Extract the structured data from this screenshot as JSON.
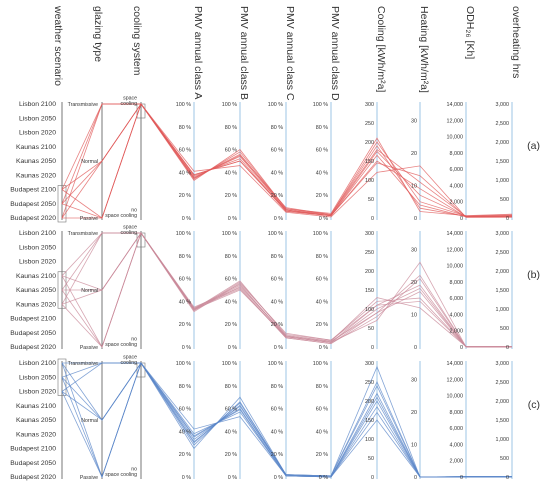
{
  "chart_data": {
    "type": "parallel_coordinates",
    "axes": [
      {
        "key": "weather",
        "label": "weather scenario",
        "kind": "categorical",
        "categories": [
          "Lisbon 2100",
          "Lisbon 2050",
          "Lisbon 2020",
          "Kaunas 2100",
          "Kaunas 2050",
          "Kaunas 2020",
          "Budapest 2100",
          "Budapest 2050",
          "Budapest 2020"
        ]
      },
      {
        "key": "glazing",
        "label": "glazing type",
        "kind": "categorical",
        "categories": [
          "Transmissive",
          "Normal",
          "Passive"
        ]
      },
      {
        "key": "cooling",
        "label": "cooling system",
        "kind": "categorical",
        "categories": [
          "space\ncooling",
          "no\nspace cooling"
        ]
      },
      {
        "key": "pmvA",
        "label": "PMV annual class A",
        "kind": "numeric",
        "min": 0,
        "max": 100,
        "unit": "%",
        "ticks": [
          "0 %",
          "20 %",
          "40 %",
          "60 %",
          "80 %",
          "100 %"
        ]
      },
      {
        "key": "pmvB",
        "label": "PMV annual class B",
        "kind": "numeric",
        "min": 0,
        "max": 100,
        "unit": "%",
        "ticks": [
          "0 %",
          "20 %",
          "40 %",
          "60 %",
          "80 %",
          "100 %"
        ]
      },
      {
        "key": "pmvC",
        "label": "PMV annual class C",
        "kind": "numeric",
        "min": 0,
        "max": 100,
        "unit": "%",
        "ticks": [
          "0 %",
          "20 %",
          "40 %",
          "60 %",
          "80 %",
          "100 %"
        ]
      },
      {
        "key": "pmvD",
        "label": "PMV annual class D",
        "kind": "numeric",
        "min": 0,
        "max": 100,
        "unit": "%",
        "ticks": [
          "0 %",
          "20 %",
          "40 %",
          "60 %",
          "80 %",
          "100 %"
        ]
      },
      {
        "key": "cool",
        "label": "Cooling [kWh/m²a]",
        "kind": "numeric",
        "min": 0,
        "max": 300,
        "ticks": [
          "0",
          "50",
          "100",
          "150",
          "200",
          "250",
          "300"
        ]
      },
      {
        "key": "heat",
        "label": "Heating [kWh/m²a]",
        "kind": "numeric",
        "min": 0,
        "max": 35,
        "ticks": [
          "0",
          "10",
          "20",
          "30"
        ]
      },
      {
        "key": "odh",
        "label": "ODH₂₆ [Kh]",
        "kind": "numeric",
        "min": 0,
        "max": 14000,
        "ticks": [
          "0",
          "2,000",
          "4,000",
          "6,000",
          "8,000",
          "10,000",
          "12,000",
          "14,000"
        ]
      },
      {
        "key": "ovh",
        "label": "overheating hrs",
        "kind": "numeric",
        "min": 0,
        "max": 3000,
        "ticks": [
          "0",
          "500",
          "1,000",
          "1,500",
          "2,000",
          "2,500",
          "3,000"
        ]
      }
    ],
    "panels": [
      {
        "label": "(a)",
        "color": "#e05a5a",
        "selected_weather": [
          "Budapest 2100",
          "Budapest 2050",
          "Budapest 2020"
        ],
        "selected_cooling": "space\ncooling",
        "series": [
          {
            "weather": "Budapest 2100",
            "glazing": "Transmissive",
            "cooling": "space\ncooling",
            "pmvA": 33,
            "pmvB": 60,
            "pmvC": 8,
            "pmvD": 4,
            "cool": 210,
            "heat": 2,
            "odh": 300,
            "ovh": 100
          },
          {
            "weather": "Budapest 2100",
            "glazing": "Normal",
            "cooling": "space\ncooling",
            "pmvA": 35,
            "pmvB": 56,
            "pmvC": 7,
            "pmvD": 3,
            "cool": 190,
            "heat": 3,
            "odh": 200,
            "ovh": 60
          },
          {
            "weather": "Budapest 2100",
            "glazing": "Passive",
            "cooling": "space\ncooling",
            "pmvA": 37,
            "pmvB": 52,
            "pmvC": 6,
            "pmvD": 2,
            "cool": 165,
            "heat": 4,
            "odh": 150,
            "ovh": 40
          },
          {
            "weather": "Budapest 2050",
            "glazing": "Transmissive",
            "cooling": "space\ncooling",
            "pmvA": 34,
            "pmvB": 58,
            "pmvC": 8,
            "pmvD": 3,
            "cool": 200,
            "heat": 5,
            "odh": 250,
            "ovh": 80
          },
          {
            "weather": "Budapest 2050",
            "glazing": "Normal",
            "cooling": "space\ncooling",
            "pmvA": 36,
            "pmvB": 54,
            "pmvC": 7,
            "pmvD": 2,
            "cool": 175,
            "heat": 7,
            "odh": 180,
            "ovh": 50
          },
          {
            "weather": "Budapest 2050",
            "glazing": "Passive",
            "cooling": "space\ncooling",
            "pmvA": 38,
            "pmvB": 50,
            "pmvC": 6,
            "pmvD": 2,
            "cool": 150,
            "heat": 9,
            "odh": 120,
            "ovh": 30
          },
          {
            "weather": "Budapest 2020",
            "glazing": "Transmissive",
            "cooling": "space\ncooling",
            "pmvA": 35,
            "pmvB": 55,
            "pmvC": 9,
            "pmvD": 3,
            "cool": 180,
            "heat": 11,
            "odh": 200,
            "ovh": 60
          },
          {
            "weather": "Budapest 2020",
            "glazing": "Normal",
            "cooling": "space\ncooling",
            "pmvA": 38,
            "pmvB": 50,
            "pmvC": 7,
            "pmvD": 2,
            "cool": 145,
            "heat": 13,
            "odh": 120,
            "ovh": 30
          },
          {
            "weather": "Budapest 2020",
            "glazing": "Passive",
            "cooling": "space\ncooling",
            "pmvA": 41,
            "pmvB": 46,
            "pmvC": 5,
            "pmvD": 1,
            "cool": 120,
            "heat": 16,
            "odh": 80,
            "ovh": 20
          }
        ]
      },
      {
        "label": "(b)",
        "color": "#c98a9a",
        "selected_weather": [
          "Kaunas 2100",
          "Kaunas 2050",
          "Kaunas 2020"
        ],
        "selected_cooling": "space\ncooling",
        "series": [
          {
            "weather": "Kaunas 2100",
            "glazing": "Transmissive",
            "cooling": "space\ncooling",
            "pmvA": 33,
            "pmvB": 58,
            "pmvC": 10,
            "pmvD": 5,
            "cool": 130,
            "heat": 12,
            "odh": 50,
            "ovh": 10
          },
          {
            "weather": "Kaunas 2100",
            "glazing": "Normal",
            "cooling": "space\ncooling",
            "pmvA": 34,
            "pmvB": 55,
            "pmvC": 9,
            "pmvD": 4,
            "cool": 110,
            "heat": 14,
            "odh": 40,
            "ovh": 8
          },
          {
            "weather": "Kaunas 2100",
            "glazing": "Passive",
            "cooling": "space\ncooling",
            "pmvA": 35,
            "pmvB": 52,
            "pmvC": 8,
            "pmvD": 3,
            "cool": 90,
            "heat": 17,
            "odh": 30,
            "ovh": 5
          },
          {
            "weather": "Kaunas 2050",
            "glazing": "Transmissive",
            "cooling": "space\ncooling",
            "pmvA": 32,
            "pmvB": 57,
            "pmvC": 11,
            "pmvD": 6,
            "cool": 120,
            "heat": 15,
            "odh": 40,
            "ovh": 8
          },
          {
            "weather": "Kaunas 2050",
            "glazing": "Normal",
            "cooling": "space\ncooling",
            "pmvA": 33,
            "pmvB": 54,
            "pmvC": 9,
            "pmvD": 4,
            "cool": 100,
            "heat": 18,
            "odh": 30,
            "ovh": 6
          },
          {
            "weather": "Kaunas 2050",
            "glazing": "Passive",
            "cooling": "space\ncooling",
            "pmvA": 34,
            "pmvB": 51,
            "pmvC": 8,
            "pmvD": 3,
            "cool": 80,
            "heat": 21,
            "odh": 20,
            "ovh": 4
          },
          {
            "weather": "Kaunas 2020",
            "glazing": "Transmissive",
            "cooling": "space\ncooling",
            "pmvA": 31,
            "pmvB": 56,
            "pmvC": 12,
            "pmvD": 6,
            "cool": 110,
            "heat": 19,
            "odh": 30,
            "ovh": 6
          },
          {
            "weather": "Kaunas 2020",
            "glazing": "Normal",
            "cooling": "space\ncooling",
            "pmvA": 32,
            "pmvB": 53,
            "pmvC": 10,
            "pmvD": 5,
            "cool": 90,
            "heat": 22,
            "odh": 20,
            "ovh": 4
          },
          {
            "weather": "Kaunas 2020",
            "glazing": "Passive",
            "cooling": "space\ncooling",
            "pmvA": 33,
            "pmvB": 50,
            "pmvC": 9,
            "pmvD": 4,
            "cool": 70,
            "heat": 26,
            "odh": 10,
            "ovh": 2
          }
        ]
      },
      {
        "label": "(c)",
        "color": "#5a86c8",
        "selected_weather": [
          "Lisbon 2100",
          "Lisbon 2050",
          "Lisbon 2020"
        ],
        "selected_cooling": "space\ncooling",
        "series": [
          {
            "weather": "Lisbon 2100",
            "glazing": "Transmissive",
            "cooling": "space\ncooling",
            "pmvA": 25,
            "pmvB": 70,
            "pmvC": 2,
            "pmvD": 1,
            "cool": 290,
            "heat": 0,
            "odh": 50,
            "ovh": 10
          },
          {
            "weather": "Lisbon 2100",
            "glazing": "Normal",
            "cooling": "space\ncooling",
            "pmvA": 28,
            "pmvB": 66,
            "pmvC": 2,
            "pmvD": 1,
            "cool": 250,
            "heat": 0,
            "odh": 40,
            "ovh": 8
          },
          {
            "weather": "Lisbon 2100",
            "glazing": "Passive",
            "cooling": "space\ncooling",
            "pmvA": 31,
            "pmvB": 63,
            "pmvC": 2,
            "pmvD": 0,
            "cool": 220,
            "heat": 0,
            "odh": 30,
            "ovh": 6
          },
          {
            "weather": "Lisbon 2050",
            "glazing": "Transmissive",
            "cooling": "space\ncooling",
            "pmvA": 30,
            "pmvB": 65,
            "pmvC": 2,
            "pmvD": 1,
            "cool": 240,
            "heat": 0,
            "odh": 40,
            "ovh": 8
          },
          {
            "weather": "Lisbon 2050",
            "glazing": "Normal",
            "cooling": "space\ncooling",
            "pmvA": 33,
            "pmvB": 62,
            "pmvC": 2,
            "pmvD": 0,
            "cool": 210,
            "heat": 0,
            "odh": 30,
            "ovh": 6
          },
          {
            "weather": "Lisbon 2050",
            "glazing": "Passive",
            "cooling": "space\ncooling",
            "pmvA": 36,
            "pmvB": 59,
            "pmvC": 1,
            "pmvD": 0,
            "cool": 185,
            "heat": 0,
            "odh": 20,
            "ovh": 4
          },
          {
            "weather": "Lisbon 2020",
            "glazing": "Transmissive",
            "cooling": "space\ncooling",
            "pmvA": 35,
            "pmvB": 60,
            "pmvC": 1,
            "pmvD": 0,
            "cool": 200,
            "heat": 0,
            "odh": 30,
            "ovh": 6
          },
          {
            "weather": "Lisbon 2020",
            "glazing": "Normal",
            "cooling": "space\ncooling",
            "pmvA": 38,
            "pmvB": 57,
            "pmvC": 1,
            "pmvD": 0,
            "cool": 170,
            "heat": 0,
            "odh": 20,
            "ovh": 4
          },
          {
            "weather": "Lisbon 2020",
            "glazing": "Passive",
            "cooling": "space\ncooling",
            "pmvA": 42,
            "pmvB": 53,
            "pmvC": 1,
            "pmvD": 0,
            "cool": 150,
            "heat": 0,
            "odh": 10,
            "ovh": 2
          }
        ]
      }
    ]
  }
}
